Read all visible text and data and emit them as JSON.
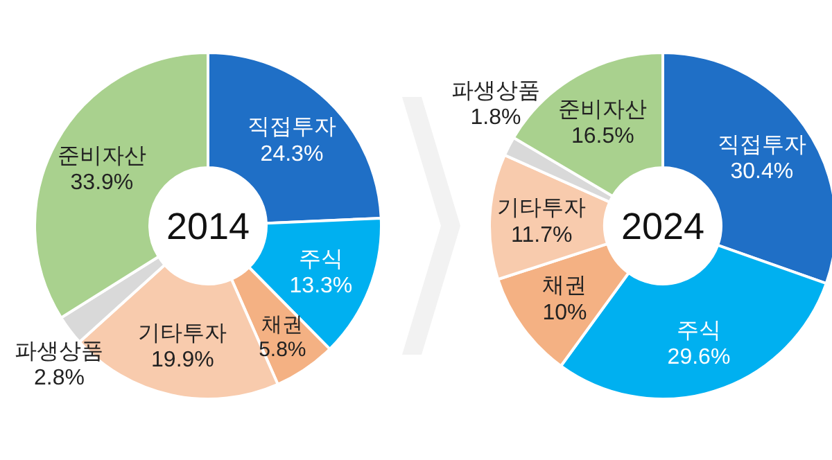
{
  "chart_data": [
    {
      "type": "donut",
      "title": "2014",
      "categories": [
        "직접투자",
        "주식",
        "채권",
        "기타투자",
        "파생상품",
        "준비자산"
      ],
      "values": [
        24.3,
        13.3,
        5.8,
        19.9,
        2.8,
        33.9
      ],
      "colors": [
        "#1f6fc6",
        "#00b0f0",
        "#f4b183",
        "#f8cbad",
        "#d9d9d9",
        "#a9d18e"
      ],
      "value_labels": [
        "24.3%",
        "13.3%",
        "5.8%",
        "19.9%",
        "2.8%",
        "33.9%"
      ]
    },
    {
      "type": "donut",
      "title": "2024",
      "categories": [
        "직접투자",
        "주식",
        "채권",
        "기타투자",
        "파생상품",
        "준비자산"
      ],
      "values": [
        30.4,
        29.6,
        10,
        11.7,
        1.8,
        16.5
      ],
      "colors": [
        "#1f6fc6",
        "#00b0f0",
        "#f4b183",
        "#f8cbad",
        "#d9d9d9",
        "#a9d18e"
      ],
      "value_labels": [
        "30.4%",
        "29.6%",
        "10%",
        "11.7%",
        "1.8%",
        "16.5%"
      ]
    }
  ]
}
